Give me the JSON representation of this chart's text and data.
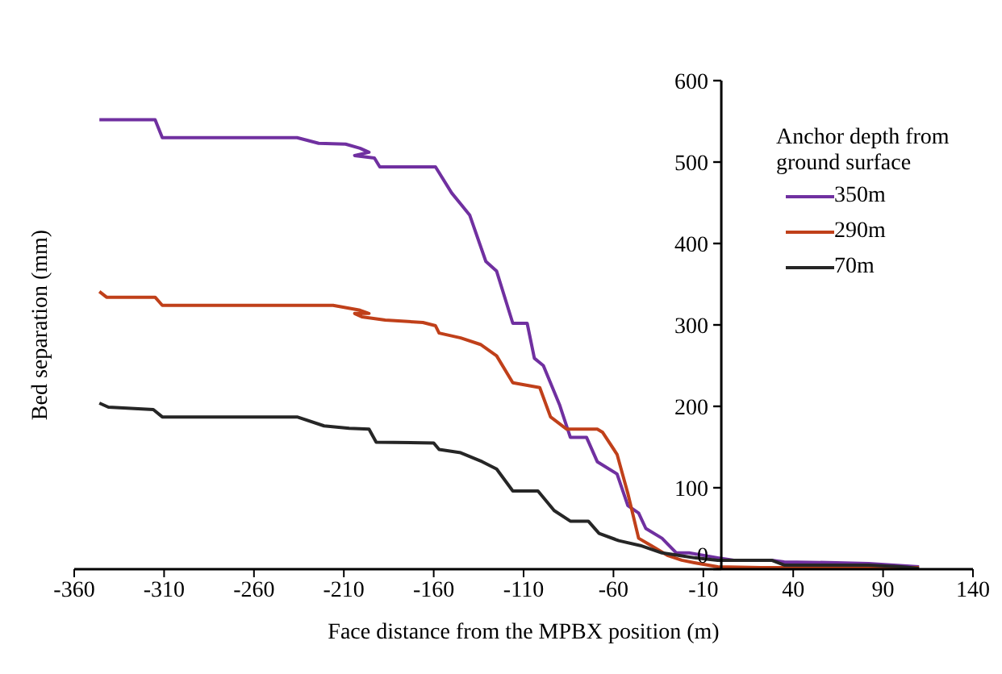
{
  "chart_data": {
    "type": "line",
    "xlabel": "Face distance from the MPBX  position (m)",
    "ylabel": "Bed separation (mm)",
    "legend_title": "Anchor depth from ground surface",
    "legend": "top right",
    "grid": false,
    "marker": "none",
    "line_style": "solid",
    "xlim": [
      -360,
      140
    ],
    "xticks": [
      -360,
      -310,
      -260,
      -210,
      -160,
      -110,
      -60,
      -10,
      40,
      90,
      140
    ],
    "ylim": [
      0,
      600
    ],
    "yticks": [
      0,
      100,
      200,
      300,
      400,
      500,
      600
    ],
    "series": [
      {
        "name": "350m",
        "color": "#7030a0",
        "x": [
          -346,
          -315,
          -311,
          -236,
          -224,
          -209,
          -201,
          -196,
          -204,
          -193,
          -190,
          -159,
          -150,
          -140,
          -131,
          -125,
          -116,
          -108,
          -104,
          -99,
          -90,
          -84,
          -75,
          -69,
          -58,
          -52,
          -46,
          -42,
          -33,
          -25,
          -18,
          -2,
          7,
          28,
          35,
          64,
          82,
          110
        ],
        "values": [
          552,
          552,
          530,
          530,
          523,
          522,
          517,
          512,
          508,
          505,
          494,
          494,
          462,
          435,
          378,
          366,
          302,
          302,
          259,
          250,
          202,
          162,
          162,
          132,
          117,
          78,
          69,
          50,
          38,
          20,
          20,
          14,
          11,
          11,
          9,
          8,
          7,
          3
        ]
      },
      {
        "name": "290m",
        "color": "#c0401a",
        "x": [
          -346,
          -342,
          -315,
          -311,
          -216,
          -201,
          -196,
          -204,
          -200,
          -187,
          -166,
          -159,
          -157,
          -145,
          -134,
          -125,
          -116,
          -101,
          -95,
          -86,
          -69,
          -66,
          -58,
          -52,
          -46,
          -39,
          -30,
          -22,
          -15,
          -2,
          22,
          110
        ],
        "values": [
          341,
          334,
          334,
          324,
          324,
          318,
          314,
          314,
          310,
          306,
          303,
          299,
          290,
          284,
          276,
          262,
          229,
          223,
          187,
          172,
          172,
          168,
          141,
          93,
          38,
          29,
          17,
          11,
          8,
          3,
          2,
          2
        ]
      },
      {
        "name": "70m",
        "color": "#262626",
        "x": [
          -346,
          -341,
          -316,
          -311,
          -236,
          -221,
          -207,
          -196,
          -192,
          -160,
          -157,
          -145,
          -133,
          -125,
          -116,
          -102,
          -93,
          -84,
          -74,
          -68,
          -57,
          -45,
          -33,
          -24,
          -15,
          -2,
          28,
          35,
          82,
          100,
          110
        ],
        "values": [
          204,
          199,
          196,
          187,
          187,
          176,
          173,
          172,
          156,
          155,
          147,
          143,
          132,
          123,
          96,
          96,
          72,
          59,
          59,
          44,
          35,
          29,
          20,
          17,
          14,
          11,
          11,
          5,
          5,
          3,
          1
        ]
      }
    ]
  }
}
